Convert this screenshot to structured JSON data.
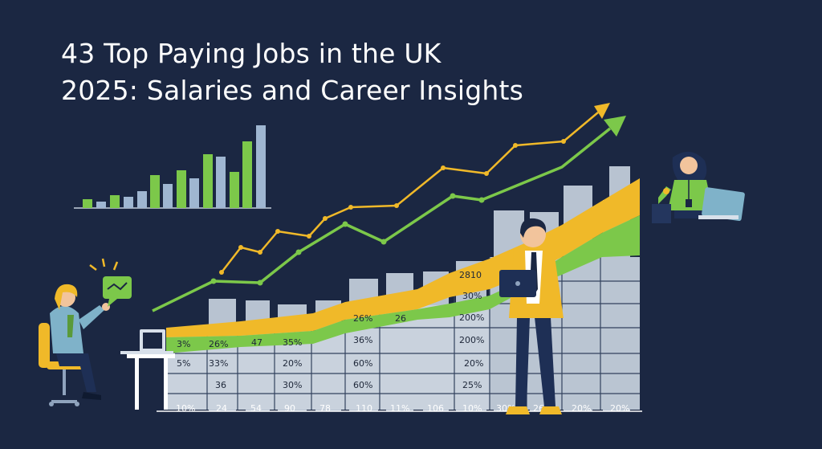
{
  "title": {
    "line1": "43 Top Paying Jobs in the UK",
    "line2": "2025: Salaries and Career Insights"
  },
  "colors": {
    "background": "#1b2742",
    "green": "#7cc84a",
    "yellow": "#f0b929",
    "bars": "#b8c3d1"
  },
  "table": {
    "col1": [
      "3%",
      "5%",
      ""
    ],
    "col2": [
      "26%",
      "33%",
      "36"
    ],
    "col3": [
      "47",
      "",
      ""
    ],
    "col4": [
      "35%",
      "20%",
      "30%"
    ],
    "col5": [
      "36%",
      "60%",
      "60%"
    ],
    "col6": [
      "26",
      "",
      ""
    ],
    "col7": [
      "2810",
      "30%",
      "200%",
      "200%",
      "20%",
      "25%"
    ],
    "upper_col5": "26%"
  },
  "axis_labels": [
    "10%",
    "24",
    "54",
    "90",
    "78",
    "110",
    "11%",
    "106",
    "10%",
    "30%",
    "26",
    "20%",
    "20%"
  ],
  "icons": [
    "chat-bubble-icon",
    "laptop-icon",
    "person-icon",
    "trend-arrow-icon"
  ]
}
